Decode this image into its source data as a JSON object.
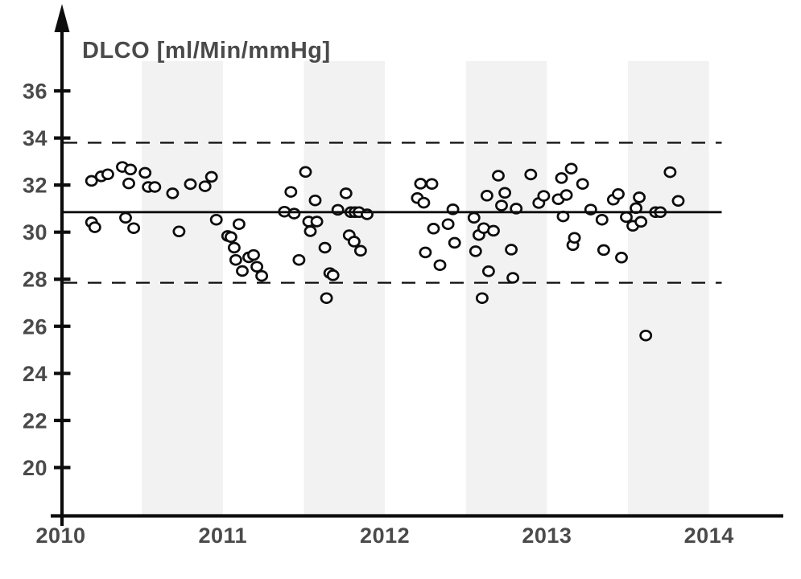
{
  "chart_data": {
    "type": "scatter",
    "title": "DLCO [ml/Min/mmHg]",
    "x_axis": {
      "ticks": [
        "2010",
        "2011",
        "2012",
        "2013",
        "2014"
      ],
      "range": [
        2010,
        2014.45
      ],
      "grid": false
    },
    "y_axis": {
      "ticks": [
        "20",
        "22",
        "24",
        "26",
        "28",
        "30",
        "32",
        "34",
        "36"
      ],
      "tick_values": [
        20,
        22,
        24,
        26,
        28,
        30,
        32,
        34,
        36
      ],
      "range": [
        18.4,
        37.6
      ],
      "grid": false
    },
    "legend": "none",
    "reference_lines": {
      "mean": 30.85,
      "upper_dashed": 33.8,
      "lower_dashed": 27.85
    },
    "shaded_bands_x": [
      [
        2010.5,
        2011.0
      ],
      [
        2011.5,
        2012.0
      ],
      [
        2012.5,
        2013.0
      ],
      [
        2013.5,
        2014.0
      ]
    ],
    "colors": {
      "band": "#f2f2f2",
      "axis": "#0d0d0d",
      "text": "#4a4a4a",
      "point_stroke": "#0d0d0d",
      "point_fill": "#ffffff",
      "line": "#0d0d0d"
    },
    "points": [
      [
        2010.19,
        32.18
      ],
      [
        2010.25,
        32.37
      ],
      [
        2010.29,
        32.46
      ],
      [
        2010.38,
        32.77
      ],
      [
        2010.43,
        32.66
      ],
      [
        2010.42,
        32.07
      ],
      [
        2010.19,
        30.42
      ],
      [
        2010.21,
        30.21
      ],
      [
        2010.4,
        30.61
      ],
      [
        2010.45,
        30.17
      ],
      [
        2010.52,
        32.52
      ],
      [
        2010.54,
        31.92
      ],
      [
        2010.58,
        31.92
      ],
      [
        2010.69,
        31.65
      ],
      [
        2010.73,
        30.03
      ],
      [
        2010.8,
        32.04
      ],
      [
        2010.89,
        31.95
      ],
      [
        2010.93,
        32.35
      ],
      [
        2010.96,
        30.53
      ],
      [
        2011.03,
        29.84
      ],
      [
        2011.05,
        29.79
      ],
      [
        2011.07,
        29.34
      ],
      [
        2011.08,
        28.82
      ],
      [
        2011.1,
        30.34
      ],
      [
        2011.12,
        28.35
      ],
      [
        2011.16,
        28.93
      ],
      [
        2011.19,
        29.03
      ],
      [
        2011.21,
        28.53
      ],
      [
        2011.24,
        28.14
      ],
      [
        2011.38,
        30.87
      ],
      [
        2011.42,
        31.71
      ],
      [
        2011.44,
        30.79
      ],
      [
        2011.47,
        28.82
      ],
      [
        2011.51,
        32.56
      ],
      [
        2011.53,
        30.45
      ],
      [
        2011.54,
        30.04
      ],
      [
        2011.57,
        31.35
      ],
      [
        2011.58,
        30.45
      ],
      [
        2011.63,
        29.34
      ],
      [
        2011.64,
        27.2
      ],
      [
        2011.66,
        28.26
      ],
      [
        2011.68,
        28.17
      ],
      [
        2011.71,
        30.95
      ],
      [
        2011.76,
        31.65
      ],
      [
        2011.78,
        29.87
      ],
      [
        2011.79,
        30.85
      ],
      [
        2011.815,
        30.85
      ],
      [
        2011.81,
        29.6
      ],
      [
        2011.84,
        30.85
      ],
      [
        2011.85,
        29.21
      ],
      [
        2011.89,
        30.76
      ],
      [
        2012.2,
        31.45
      ],
      [
        2012.22,
        32.06
      ],
      [
        2012.24,
        31.25
      ],
      [
        2012.25,
        29.14
      ],
      [
        2012.29,
        32.05
      ],
      [
        2012.3,
        30.15
      ],
      [
        2012.34,
        28.6
      ],
      [
        2012.39,
        30.34
      ],
      [
        2012.42,
        30.97
      ],
      [
        2012.43,
        29.55
      ],
      [
        2012.55,
        30.61
      ],
      [
        2012.56,
        29.19
      ],
      [
        2012.58,
        29.88
      ],
      [
        2012.6,
        27.2
      ],
      [
        2012.61,
        30.17
      ],
      [
        2012.63,
        31.55
      ],
      [
        2012.64,
        28.34
      ],
      [
        2012.67,
        30.06
      ],
      [
        2012.7,
        32.4
      ],
      [
        2012.72,
        31.13
      ],
      [
        2012.74,
        31.67
      ],
      [
        2012.78,
        29.26
      ],
      [
        2012.79,
        28.06
      ],
      [
        2012.81,
        31.0
      ],
      [
        2012.9,
        32.45
      ],
      [
        2012.95,
        31.24
      ],
      [
        2012.98,
        31.54
      ],
      [
        2013.07,
        31.4
      ],
      [
        2013.09,
        32.3
      ],
      [
        2013.1,
        30.67
      ],
      [
        2013.12,
        31.58
      ],
      [
        2013.15,
        32.7
      ],
      [
        2013.16,
        29.45
      ],
      [
        2013.17,
        29.76
      ],
      [
        2013.22,
        32.05
      ],
      [
        2013.27,
        30.96
      ],
      [
        2013.34,
        30.53
      ],
      [
        2013.35,
        29.24
      ],
      [
        2013.41,
        31.38
      ],
      [
        2013.44,
        31.62
      ],
      [
        2013.46,
        28.92
      ],
      [
        2013.49,
        30.64
      ],
      [
        2013.53,
        30.27
      ],
      [
        2013.55,
        31.02
      ],
      [
        2013.57,
        31.48
      ],
      [
        2013.58,
        30.44
      ],
      [
        2013.61,
        25.61
      ],
      [
        2013.67,
        30.85
      ],
      [
        2013.7,
        30.85
      ],
      [
        2013.76,
        32.55
      ],
      [
        2013.81,
        31.33
      ]
    ]
  }
}
